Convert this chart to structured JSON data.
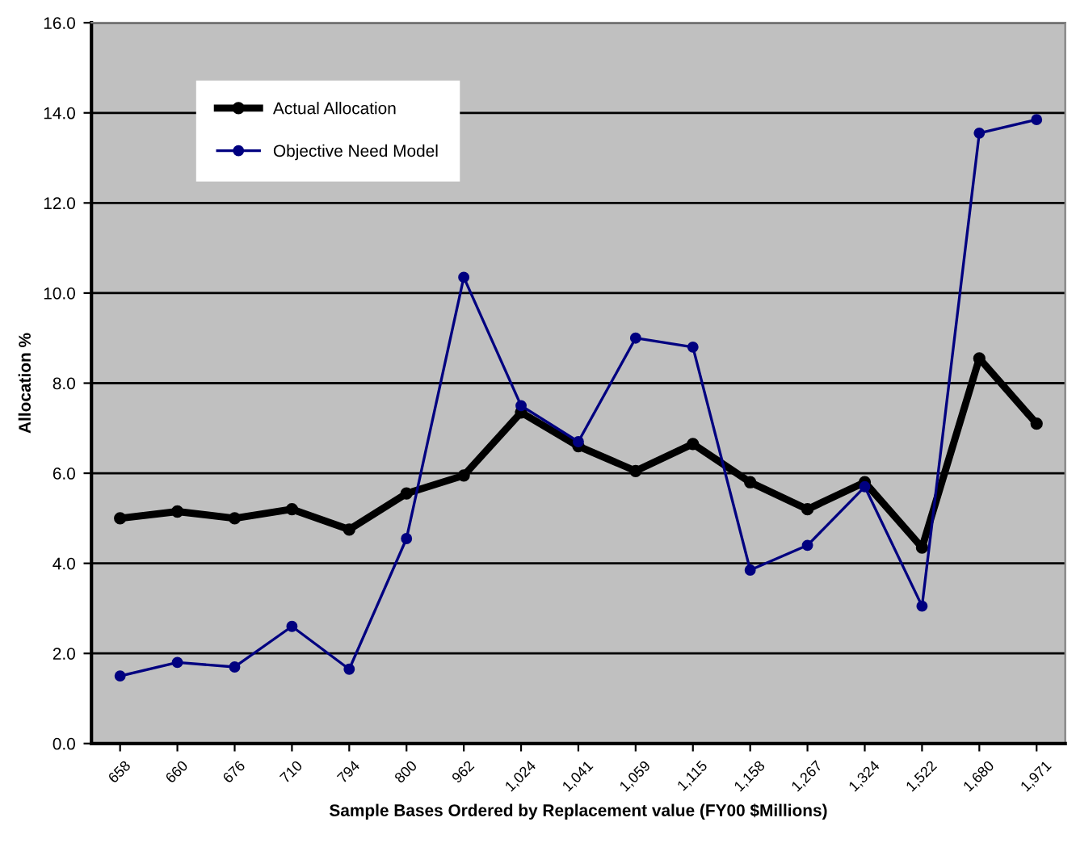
{
  "chart_data": {
    "type": "line",
    "xlabel": "Sample Bases Ordered by Replacement value (FY00 $Millions)",
    "ylabel": "Allocation %",
    "categories": [
      "658",
      "660",
      "676",
      "710",
      "794",
      "800",
      "962",
      "1,024",
      "1,041",
      "1,059",
      "1,115",
      "1,158",
      "1,267",
      "1,324",
      "1,522",
      "1,680",
      "1,971"
    ],
    "series": [
      {
        "name": "Actual Allocation",
        "color": "#000000",
        "values": [
          5.0,
          5.15,
          5.0,
          5.2,
          4.75,
          5.55,
          5.95,
          7.35,
          6.6,
          6.05,
          6.65,
          5.8,
          5.2,
          5.8,
          4.35,
          8.55,
          7.1
        ]
      },
      {
        "name": "Objective Need Model",
        "color": "#000080",
        "values": [
          1.5,
          1.8,
          1.7,
          2.6,
          1.65,
          4.55,
          10.35,
          7.5,
          6.7,
          9.0,
          8.8,
          3.85,
          4.4,
          5.7,
          3.05,
          13.55,
          13.85
        ]
      }
    ],
    "ylim": [
      0,
      16
    ],
    "yticks": [
      {
        "value": 0,
        "label": "0.0"
      },
      {
        "value": 2,
        "label": "2.0"
      },
      {
        "value": 4,
        "label": "4.0"
      },
      {
        "value": 6,
        "label": "6.0"
      },
      {
        "value": 8,
        "label": "8.0"
      },
      {
        "value": 10,
        "label": "10.0"
      },
      {
        "value": 12,
        "label": "12.0"
      },
      {
        "value": 14,
        "label": "14.0"
      },
      {
        "value": 16,
        "label": "16.0"
      }
    ],
    "grid": "y",
    "legend": "top left",
    "marker": "circle",
    "line_style": "solid"
  }
}
